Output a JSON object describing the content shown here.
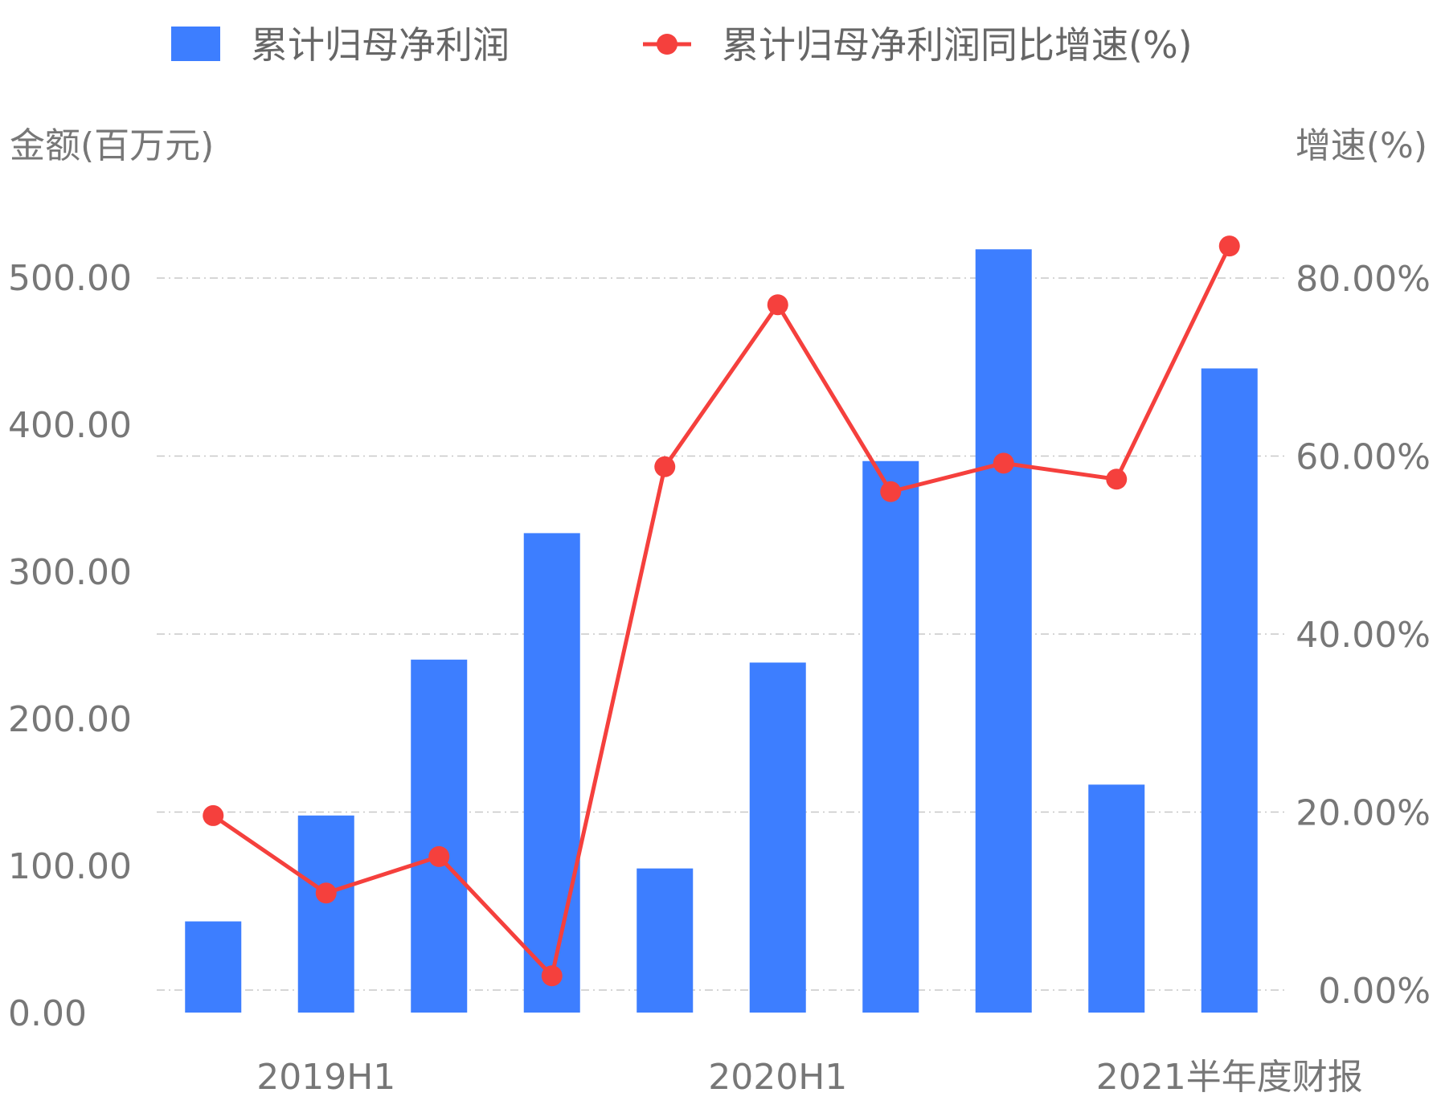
{
  "chart_data": {
    "type": "bar",
    "legend": {
      "position": "top",
      "bar_label": "累计归母净利润",
      "line_label": "累计归母净利润同比增速(%)"
    },
    "left_axis": {
      "title": "金额(百万元)",
      "ticks": [
        "0.00",
        "100.00",
        "200.00",
        "300.00",
        "400.00",
        "500.00"
      ],
      "range": [
        0,
        500
      ]
    },
    "right_axis": {
      "title": "增速(%)",
      "ticks": [
        "0.00%",
        "20.00%",
        "40.00%",
        "60.00%",
        "80.00%"
      ],
      "range": [
        0,
        80
      ]
    },
    "x_tick_labels": [
      {
        "index": 1,
        "label": "2019H1"
      },
      {
        "index": 5,
        "label": "2020H1"
      },
      {
        "index": 9,
        "label": "2021半年度财报"
      }
    ],
    "categories": [
      "",
      "2019H1",
      "",
      "",
      "",
      "2020H1",
      "",
      "",
      "",
      "2021半年度财报"
    ],
    "series": [
      {
        "name": "累计归母净利润",
        "type": "bar",
        "axis": "left",
        "color": "#3D7EFF",
        "values": [
          62,
          134,
          240,
          326,
          98,
          238,
          375,
          519,
          155,
          438
        ]
      },
      {
        "name": "累计归母净利润同比增速(%)",
        "type": "line",
        "axis": "right",
        "color": "#F5403D",
        "values": [
          19.6,
          10.9,
          15.0,
          1.6,
          58.8,
          77.0,
          56.0,
          59.2,
          57.4,
          83.6
        ]
      }
    ],
    "grid": true
  }
}
